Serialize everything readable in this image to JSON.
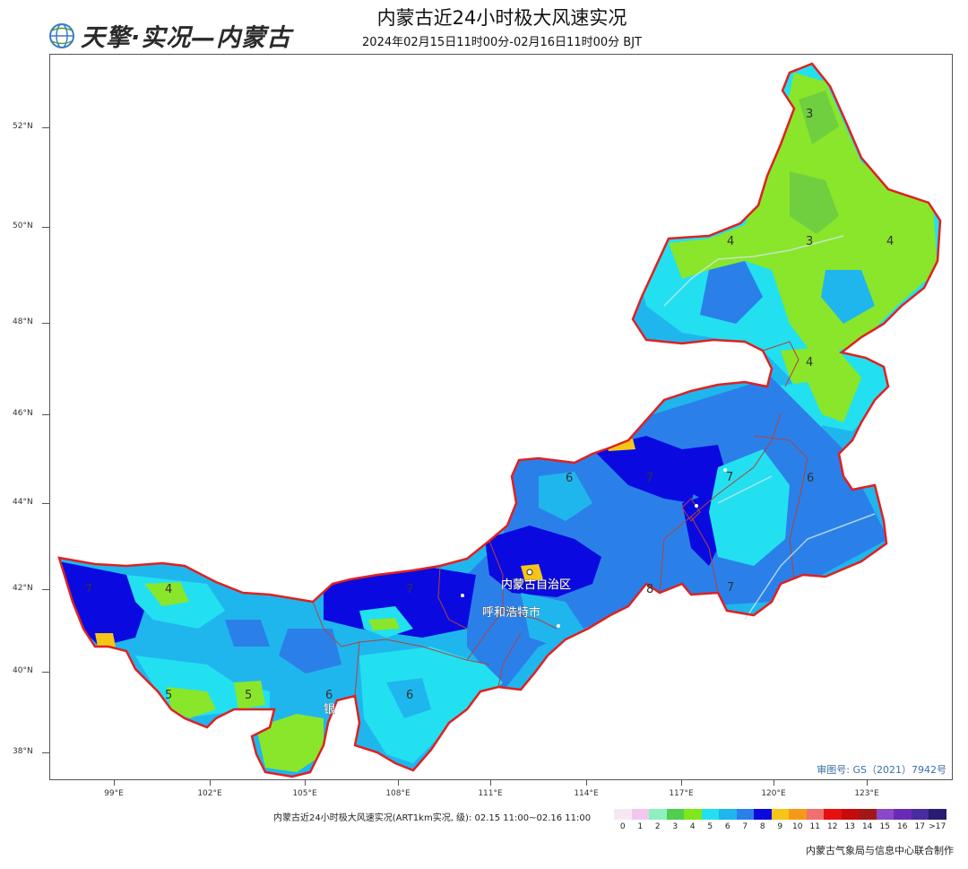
{
  "header": {
    "logo_text": "天擎·实况—内蒙古",
    "title": "内蒙古近24小时极大风速实况",
    "subtitle": "2024年02月15日11时00分-02月16日11时00分 BJT"
  },
  "map": {
    "latitude_labels": [
      "52°N",
      "50°N",
      "48°N",
      "46°N",
      "44°N",
      "42°N",
      "40°N",
      "38°N"
    ],
    "longitude_labels": [
      "99°E",
      "102°E",
      "105°E",
      "108°E",
      "111°E",
      "114°E",
      "117°E",
      "120°E",
      "123°E"
    ],
    "approval_number": "审图号: GS（2021）7942号",
    "city_labels": [
      "内蒙古自治区",
      "呼和浩特市",
      "银"
    ],
    "level_labels": [
      "3",
      "3",
      "4",
      "4",
      "4",
      "6",
      "7",
      "6",
      "7",
      "8",
      "7",
      "7",
      "4",
      "5",
      "5",
      "6",
      "6",
      "7"
    ],
    "colors": {
      "border": "#e02020",
      "inner_border": "#b44040",
      "level3": "#6fcf3f",
      "level4": "#8ae62a",
      "level5": "#22e0f0",
      "level6": "#1fb6ee",
      "level7": "#2a80e8",
      "level8": "#0a0ae0",
      "level9": "#f5c518"
    }
  },
  "legend": {
    "label": "内蒙古近24小时极大风速实况(ART1km实况, 级): 02.15 11:00~02.16 11:00",
    "levels": [
      "0",
      "1",
      "2",
      "3",
      "4",
      "5",
      "6",
      "7",
      "8",
      "9",
      "10",
      "11",
      "12",
      "13",
      "14",
      "15",
      "16",
      "17",
      ">17"
    ],
    "colors": [
      "#f5e8f3",
      "#f0c8ee",
      "#8ef0c0",
      "#4fce4f",
      "#80e81a",
      "#22e0f0",
      "#1fb6ee",
      "#2a80e8",
      "#0a0ae0",
      "#f5c518",
      "#f59a18",
      "#f07070",
      "#e61010",
      "#c80a0a",
      "#a01818",
      "#8a48c8",
      "#6a2ab8",
      "#4a2aa0",
      "#2a1a70"
    ]
  },
  "footer": {
    "credit": "内蒙古气象局与信息中心联合制作"
  }
}
